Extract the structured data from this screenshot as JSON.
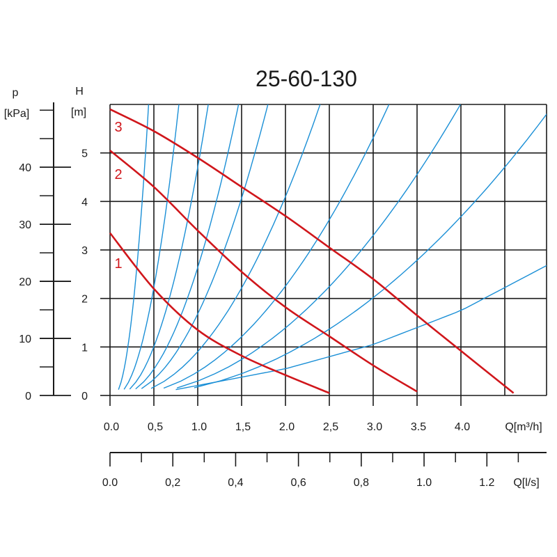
{
  "chart_data": {
    "type": "line",
    "title": "25-60-130",
    "colors": {
      "pump_curves": "#d0161b",
      "system_curves": "#1a8fd6",
      "grid": "#1a1a1a"
    },
    "grid": true,
    "axes": {
      "q_m3h": {
        "label": "Q[m³/h]",
        "range": [
          0,
          5
        ],
        "ticks": [
          {
            "v": 0,
            "label": "0.0"
          },
          {
            "v": 0.5,
            "label": "0,5"
          },
          {
            "v": 1,
            "label": "1.0"
          },
          {
            "v": 1.5,
            "label": "1,5"
          },
          {
            "v": 2,
            "label": "2.0"
          },
          {
            "v": 2.5,
            "label": "2,5"
          },
          {
            "v": 3,
            "label": "3.0"
          },
          {
            "v": 3.5,
            "label": "3.5"
          },
          {
            "v": 4,
            "label": "4.0"
          }
        ]
      },
      "q_ls": {
        "label": "Q[l/s]",
        "range": [
          0,
          1.39
        ],
        "major_ticks": [
          0,
          0.2,
          0.4,
          0.6,
          0.8,
          1.0,
          1.2
        ],
        "minor_ticks": [
          0.1,
          0.3,
          0.5,
          0.7,
          0.9,
          1.1,
          1.3
        ],
        "labels": [
          "0.0",
          "0,2",
          "0,4",
          "0,6",
          "0,8",
          "1.0",
          "1.2"
        ]
      },
      "h_m": {
        "label": "H",
        "unit": "[m]",
        "range": [
          0,
          6
        ],
        "ticks": [
          {
            "v": 0,
            "label": "0"
          },
          {
            "v": 1,
            "label": "1"
          },
          {
            "v": 2,
            "label": "2"
          },
          {
            "v": 3,
            "label": "3"
          },
          {
            "v": 4,
            "label": "4"
          },
          {
            "v": 5,
            "label": "5"
          }
        ]
      },
      "p_kpa": {
        "label": "p",
        "unit": "[kPa]",
        "range": [
          0,
          51
        ],
        "major_ticks": [
          0,
          10,
          20,
          30,
          40
        ],
        "minor_ticks": [
          5,
          15,
          25,
          35,
          45,
          50
        ],
        "labels": [
          "0",
          "10",
          "20",
          "30",
          "40"
        ]
      }
    },
    "pump_curves": [
      {
        "label": "1",
        "points": [
          [
            0,
            3.35
          ],
          [
            0.5,
            2.2
          ],
          [
            1,
            1.35
          ],
          [
            1.5,
            0.82
          ],
          [
            2,
            0.42
          ],
          [
            2.5,
            0.05
          ]
        ]
      },
      {
        "label": "2",
        "points": [
          [
            0,
            5.05
          ],
          [
            0.5,
            4.3
          ],
          [
            1,
            3.4
          ],
          [
            1.5,
            2.55
          ],
          [
            2,
            1.82
          ],
          [
            2.5,
            1.22
          ],
          [
            3,
            0.62
          ],
          [
            3.5,
            0.08
          ]
        ]
      },
      {
        "label": "3",
        "points": [
          [
            0,
            5.9
          ],
          [
            0.5,
            5.45
          ],
          [
            1,
            4.9
          ],
          [
            1.5,
            4.3
          ],
          [
            2,
            3.7
          ],
          [
            2.5,
            3.05
          ],
          [
            3,
            2.4
          ],
          [
            3.5,
            1.65
          ],
          [
            4,
            0.92
          ],
          [
            4.6,
            0.05
          ]
        ]
      }
    ],
    "system_curves": [
      {
        "q_at_top": 0.4
      },
      {
        "q_at_top": 0.73
      },
      {
        "q_at_top": 1.05
      },
      {
        "q_at_top": 1.38
      },
      {
        "q_at_top": 1.7
      },
      {
        "q_at_top": 2.28
      },
      {
        "q_at_top": 3.05
      },
      {
        "q_at_top": 3.85
      },
      {
        "q_at_top": 4.9
      }
    ],
    "system_curves_h_range": [
      0.12,
      6
    ],
    "system_curves_q_range": [
      0.1,
      6.65
    ],
    "extra_system_curve": {
      "points": [
        [
          0.75,
          0.12
        ],
        [
          2,
          0.55
        ],
        [
          3,
          1.05
        ],
        [
          4,
          1.75
        ],
        [
          5,
          2.7
        ]
      ]
    }
  }
}
